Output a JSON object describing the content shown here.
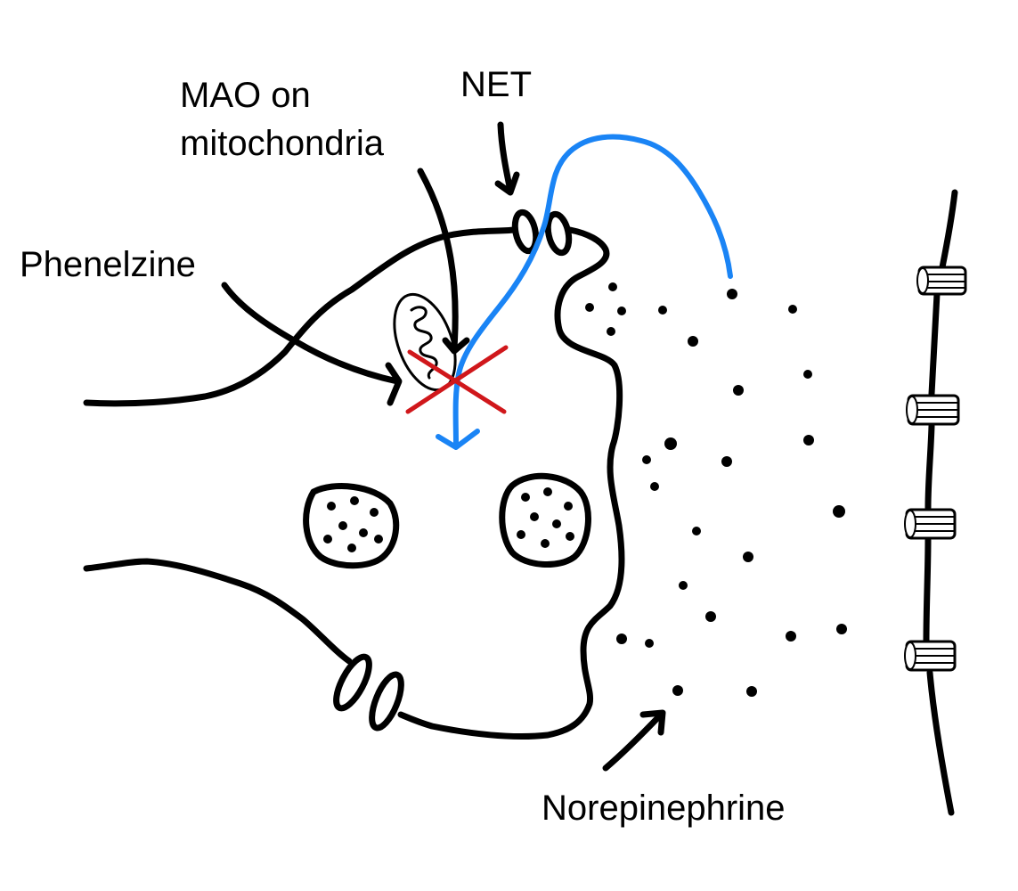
{
  "labels": {
    "net": "NET",
    "mao_line1": "MAO on",
    "mao_line2": "mitochondria",
    "phenelzine": "Phenelzine",
    "norepinephrine": "Norepinephrine"
  },
  "colors": {
    "ink": "#000000",
    "reuptake_path": "#1a84f5",
    "inhibition_cross": "#d0171b"
  },
  "icons": {
    "inhibition": "red-x-cross",
    "transporter": "oval-pair",
    "receptor": "stacked-cylinder"
  }
}
